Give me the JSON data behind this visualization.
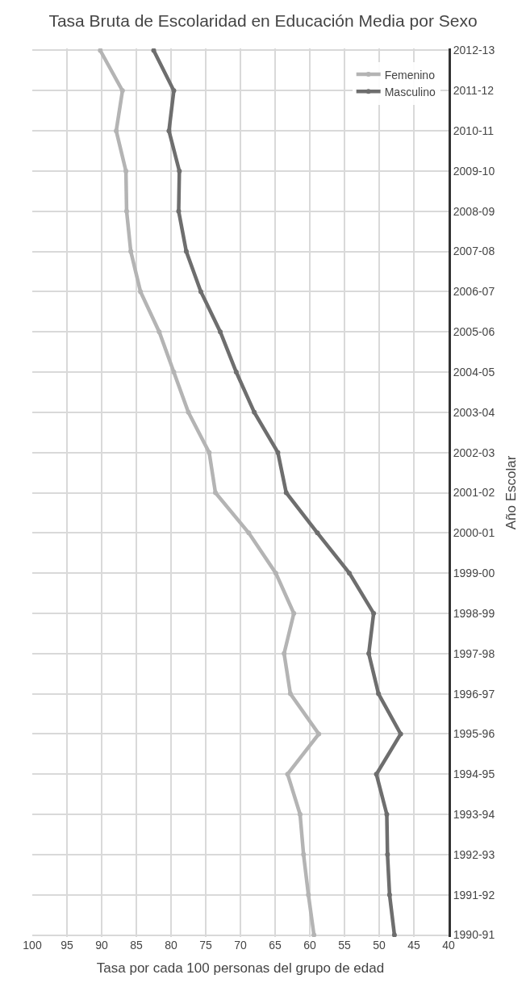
{
  "chart_data": {
    "type": "line",
    "orientation": "horizontal",
    "title": "Tasa Bruta de Escolaridad en Educación Media por Sexo",
    "xlabel": "Tasa por cada 100 personas del grupo de edad",
    "ylabel": "Año Escolar",
    "categories": [
      "2012-13",
      "2011-12",
      "2010-11",
      "2009-10",
      "2008-09",
      "2007-08",
      "2006-07",
      "2005-06",
      "2004-05",
      "2003-04",
      "2002-03",
      "2001-02",
      "2000-01",
      "1999-00",
      "1998-99",
      "1997-98",
      "1996-97",
      "1995-96",
      "1994-95",
      "1993-94",
      "1992-93",
      "1991-92",
      "1990-91"
    ],
    "series": [
      {
        "name": "Femenino",
        "color": "#b4b4b4",
        "values": [
          90.2,
          87.0,
          87.9,
          86.5,
          86.4,
          85.8,
          84.4,
          81.7,
          79.6,
          77.5,
          74.5,
          73.6,
          68.8,
          64.9,
          62.3,
          63.7,
          62.8,
          58.7,
          63.2,
          61.4,
          60.9,
          60.2,
          59.4
        ]
      },
      {
        "name": "Masculino",
        "color": "#6e6e6e",
        "values": [
          82.5,
          79.6,
          80.3,
          78.8,
          78.9,
          77.8,
          75.7,
          72.9,
          70.6,
          68.0,
          64.6,
          63.4,
          58.9,
          54.3,
          50.8,
          51.5,
          50.1,
          46.9,
          50.4,
          48.9,
          48.8,
          48.5,
          47.8
        ]
      }
    ],
    "xlim": [
      100,
      40
    ],
    "xticks": [
      100,
      95,
      90,
      85,
      80,
      75,
      70,
      65,
      60,
      55,
      50,
      45,
      40
    ],
    "grid": true,
    "legend": "top right",
    "marker": "circle",
    "line_style": "solid"
  }
}
